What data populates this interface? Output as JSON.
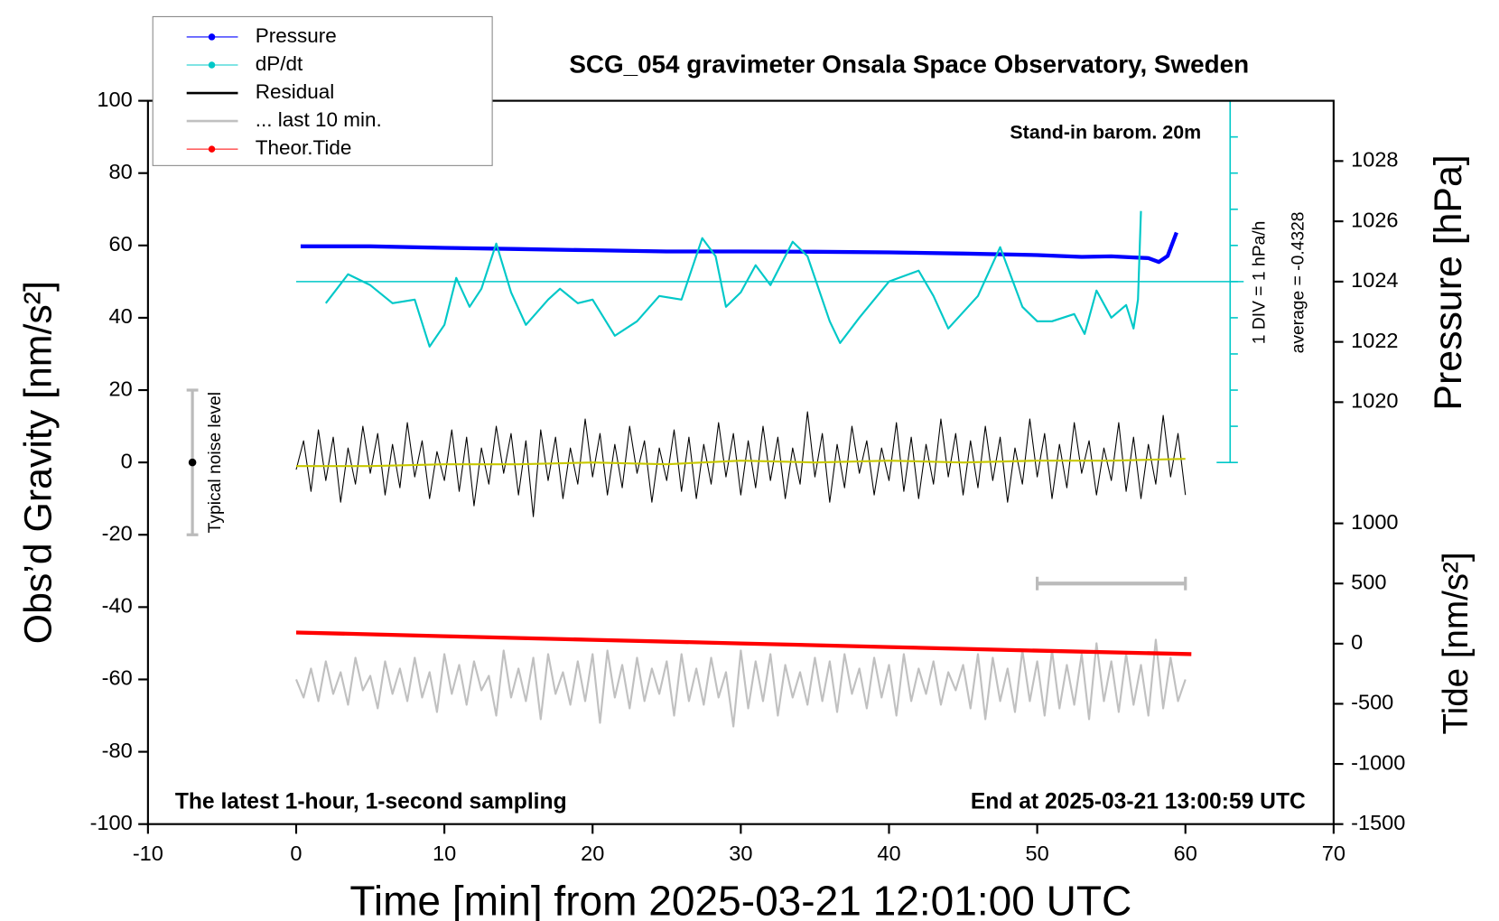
{
  "chart_data": {
    "type": "line",
    "title": "SCG_054 gravimeter Onsala Space Observatory, Sweden",
    "note_top": "Stand-in barom. 20m",
    "note_bottom_left": "The latest 1-hour, 1-second sampling",
    "note_bottom_right": "End at 2025-03-21 13:00:59 UTC",
    "xlabel": "Time [min] from 2025-03-21 12:01:00 UTC",
    "ylabel": "Obs’d Gravity [nm/s²]",
    "y2label": "Pressure [hPa]",
    "y3label": "Tide [nm/s²]",
    "dpdt_note": "1 DIV = 1 hPa/h",
    "dpdt_average_label": "average = -0.4328",
    "dpdt_average": -0.4328,
    "xlim": [
      -10,
      70
    ],
    "xticks": [
      -10,
      0,
      10,
      20,
      30,
      40,
      50,
      60,
      70
    ],
    "ylim": [
      -100,
      100
    ],
    "yticks": [
      -100,
      -80,
      -60,
      -40,
      -20,
      0,
      20,
      40,
      60,
      80,
      100
    ],
    "y2lim": [
      1006,
      1030
    ],
    "y2ticks": [
      1020,
      1022,
      1024,
      1026,
      1028
    ],
    "y3lim": [
      -1500,
      4513
    ],
    "y3ticks": [
      -1500,
      -1000,
      -500,
      0,
      500,
      1000
    ],
    "dpdt_lim": [
      -5.4328,
      4.5672
    ],
    "dpdt_ticks": [
      -5.4328,
      -4.4328,
      -3.4328,
      -2.4328,
      -1.4328,
      -0.4328,
      0.5672,
      1.5672,
      2.5672,
      3.5672,
      4.5672
    ],
    "noise_level": {
      "label": "Typical noise level",
      "x": -7,
      "y": 0,
      "low": -20,
      "high": 20
    },
    "last10_bar": {
      "x": [
        50,
        60
      ],
      "y": 500
    },
    "x": [
      0,
      0.5,
      1,
      1.5,
      2,
      2.5,
      3,
      3.5,
      4,
      4.5,
      5,
      5.5,
      6,
      6.5,
      7,
      7.5,
      8,
      8.5,
      9,
      9.5,
      10,
      10.5,
      11,
      11.5,
      12,
      12.5,
      13,
      13.5,
      14,
      14.5,
      15,
      15.5,
      16,
      16.5,
      17,
      17.5,
      18,
      18.5,
      19,
      19.5,
      20,
      20.5,
      21,
      21.5,
      22,
      22.5,
      23,
      23.5,
      24,
      24.5,
      25,
      25.5,
      26,
      26.5,
      27,
      27.5,
      28,
      28.5,
      29,
      29.5,
      30,
      30.5,
      31,
      31.5,
      32,
      32.5,
      33,
      33.5,
      34,
      34.5,
      35,
      35.5,
      36,
      36.5,
      37,
      37.5,
      38,
      38.5,
      39,
      39.5,
      40,
      40.5,
      41,
      41.5,
      42,
      42.5,
      43,
      43.5,
      44,
      44.5,
      45,
      45.5,
      46,
      46.5,
      47,
      47.5,
      48,
      48.5,
      49,
      49.5,
      50,
      50.5,
      51,
      51.5,
      52,
      52.5,
      53,
      53.5,
      54,
      54.5,
      55,
      55.5,
      56,
      56.5,
      57,
      57.5,
      58,
      58.5,
      59,
      59.5,
      60
    ],
    "series": [
      {
        "name": "Pressure",
        "color": "#0000ff",
        "axis": "y2",
        "marker": true,
        "x": [
          0.3,
          5,
          10,
          15,
          20,
          25,
          30,
          35,
          40,
          45,
          50,
          53,
          55,
          56.5,
          57.5,
          58.2,
          58.8,
          59.4
        ],
        "values": [
          1025.17,
          1025.17,
          1025.12,
          1025.08,
          1025.04,
          1025.0,
          1025.0,
          1024.99,
          1024.97,
          1024.93,
          1024.88,
          1024.82,
          1024.84,
          1024.8,
          1024.78,
          1024.65,
          1024.85,
          1025.63
        ]
      },
      {
        "name": "dP/dt",
        "color": "#00c8c8",
        "axis": "dpdt",
        "marker": true,
        "x": [
          2,
          3.5,
          5,
          6.5,
          8,
          9,
          10,
          10.8,
          11.7,
          12.5,
          13.5,
          14.5,
          15.5,
          17,
          17.8,
          19,
          20,
          21.5,
          23,
          24.5,
          26,
          27.4,
          28.3,
          29,
          30,
          31,
          32,
          33.5,
          34.5,
          36,
          36.7,
          38,
          40,
          42,
          43,
          44,
          46,
          47.5,
          49,
          50,
          51,
          52.5,
          53.2,
          54,
          55,
          56,
          56.5,
          56.8,
          57
        ],
        "values": [
          -1.03,
          -0.23,
          -0.53,
          -1.03,
          -0.93,
          -2.23,
          -1.63,
          -0.33,
          -1.13,
          -0.63,
          0.62,
          -0.73,
          -1.63,
          -0.93,
          -0.63,
          -1.03,
          -0.93,
          -1.93,
          -1.53,
          -0.83,
          -0.93,
          0.77,
          0.27,
          -1.13,
          -0.73,
          0.02,
          -0.53,
          0.67,
          0.27,
          -1.53,
          -2.13,
          -1.43,
          -0.43,
          -0.13,
          -0.83,
          -1.73,
          -0.83,
          0.52,
          -1.13,
          -1.53,
          -1.53,
          -1.33,
          -1.88,
          -0.68,
          -1.43,
          -1.08,
          -1.73,
          -0.93,
          1.52
        ]
      },
      {
        "name": "Residual",
        "color": "#000000",
        "axis": "y",
        "values": [
          -2,
          6,
          -8,
          9,
          -5,
          7,
          -11,
          4,
          -6,
          10,
          -3,
          8,
          -9,
          5,
          -7,
          11,
          -4,
          6,
          -10,
          3,
          -5,
          9,
          -8,
          7,
          -12,
          4,
          -6,
          10,
          -3,
          8,
          -9,
          6,
          -15,
          9,
          -5,
          7,
          -10,
          4,
          -6,
          12,
          -4,
          8,
          -9,
          5,
          -7,
          10,
          -3,
          6,
          -11,
          4,
          -5,
          9,
          -8,
          7,
          -10,
          5,
          -6,
          11,
          -4,
          8,
          -9,
          6,
          -7,
          10,
          -5,
          7,
          -10,
          4,
          -6,
          14,
          -4,
          8,
          -11,
          5,
          -7,
          10,
          -3,
          6,
          -9,
          4,
          -5,
          11,
          -8,
          7,
          -10,
          5,
          -6,
          12,
          -4,
          8,
          -9,
          6,
          -7,
          10,
          -5,
          7,
          -11,
          4,
          -6,
          12,
          -4,
          8,
          -10,
          5,
          -7,
          11,
          -3,
          6,
          -9,
          4,
          -5,
          11,
          -8,
          7,
          -10,
          5,
          -6,
          13,
          -4,
          8,
          -9
        ]
      },
      {
        "name": "... last 10 min.",
        "color": "#c0c0c0",
        "axis": "y",
        "values": [
          -60,
          -65,
          -57,
          -66,
          -55,
          -64,
          -58,
          -67,
          -54,
          -63,
          -59,
          -68,
          -55,
          -64,
          -57,
          -66,
          -54,
          -65,
          -58,
          -69,
          -53,
          -64,
          -56,
          -67,
          -55,
          -63,
          -59,
          -70,
          -52,
          -65,
          -57,
          -66,
          -54,
          -71,
          -53,
          -64,
          -58,
          -67,
          -55,
          -66,
          -53,
          -72,
          -52,
          -65,
          -56,
          -68,
          -54,
          -66,
          -57,
          -64,
          -55,
          -70,
          -53,
          -66,
          -57,
          -67,
          -54,
          -65,
          -58,
          -73,
          -52,
          -68,
          -55,
          -66,
          -53,
          -70,
          -56,
          -65,
          -58,
          -67,
          -54,
          -66,
          -55,
          -69,
          -53,
          -64,
          -57,
          -68,
          -54,
          -65,
          -56,
          -70,
          -53,
          -66,
          -57,
          -64,
          -55,
          -67,
          -58,
          -63,
          -56,
          -68,
          -53,
          -71,
          -54,
          -66,
          -57,
          -69,
          -52,
          -66,
          -55,
          -70,
          -52,
          -68,
          -56,
          -67,
          -53,
          -71,
          -50,
          -66,
          -55,
          -69,
          -53,
          -67,
          -56,
          -70,
          -49,
          -68,
          -54,
          -66,
          -60
        ]
      },
      {
        "name": "Theor.Tide",
        "color": "#ff0000",
        "axis": "y3",
        "marker": true,
        "x": [
          0,
          10,
          20,
          30,
          40,
          50,
          60.4
        ],
        "values": [
          93,
          62,
          32,
          2,
          -28,
          -58,
          -87
        ]
      },
      {
        "color": "#c8c800",
        "axis": "y",
        "x": [
          0,
          5,
          10,
          15,
          20,
          25,
          30,
          35,
          40,
          45,
          50,
          55,
          60
        ],
        "values": [
          -1,
          -1,
          -0.5,
          -0.5,
          0,
          -0.5,
          0.5,
          0,
          0.5,
          0,
          0.5,
          0.5,
          1
        ]
      }
    ]
  }
}
